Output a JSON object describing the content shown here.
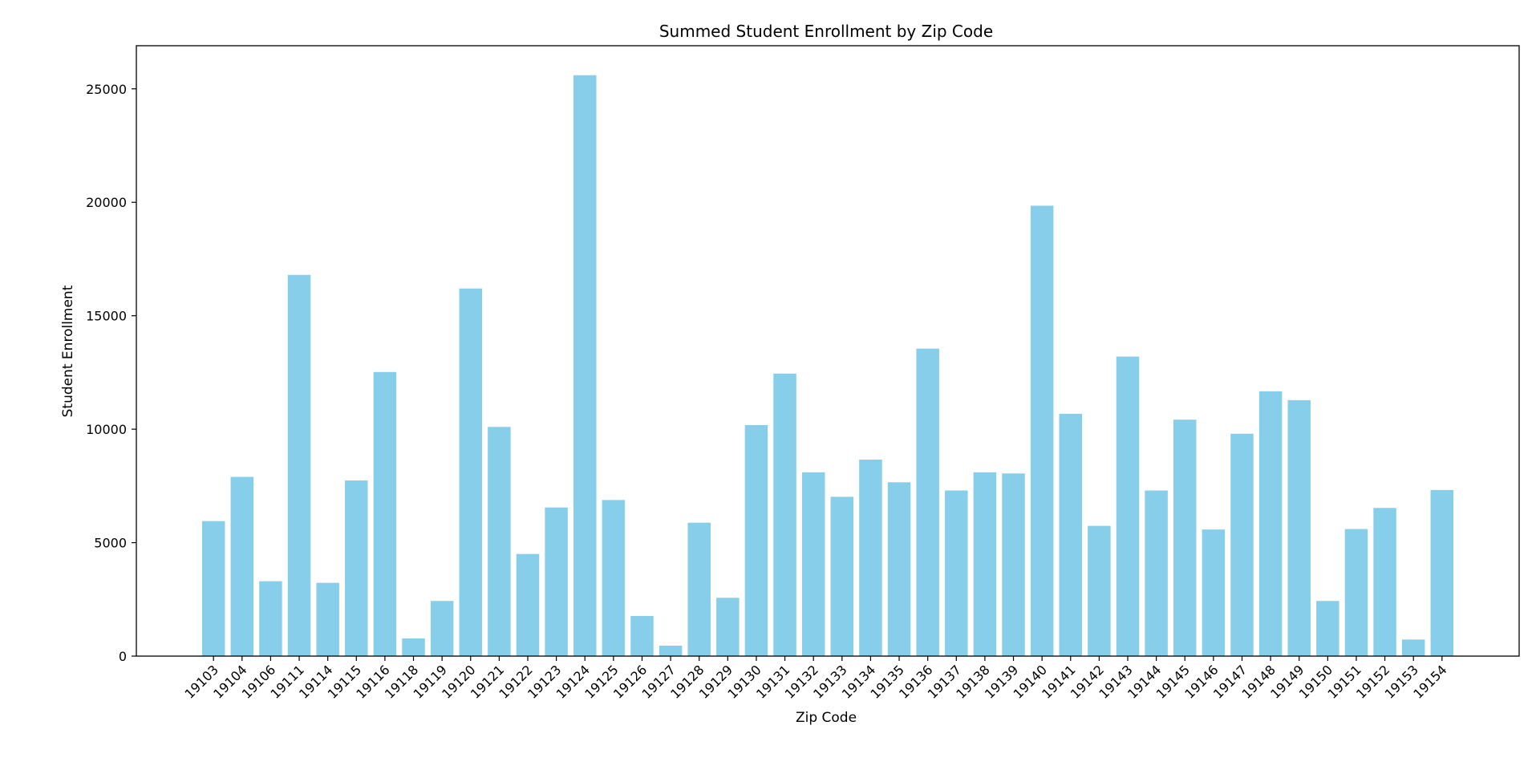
{
  "chart_data": {
    "type": "bar",
    "title": "Summed Student Enrollment by Zip Code",
    "xlabel": "Zip Code",
    "ylabel": "Student Enrollment",
    "ylim": [
      0,
      26900
    ],
    "yticks": [
      0,
      5000,
      10000,
      15000,
      20000,
      25000
    ],
    "grid": false,
    "bar_color": "#87CEEB",
    "categories": [
      "19103",
      "19104",
      "19106",
      "19111",
      "19114",
      "19115",
      "19116",
      "19118",
      "19119",
      "19120",
      "19121",
      "19122",
      "19123",
      "19124",
      "19125",
      "19126",
      "19127",
      "19128",
      "19129",
      "19130",
      "19131",
      "19132",
      "19133",
      "19134",
      "19135",
      "19136",
      "19137",
      "19138",
      "19139",
      "19140",
      "19141",
      "19142",
      "19143",
      "19144",
      "19145",
      "19146",
      "19147",
      "19148",
      "19149",
      "19150",
      "19151",
      "19152",
      "19153",
      "19154"
    ],
    "values": [
      5950,
      7900,
      3300,
      16800,
      3230,
      7740,
      12520,
      780,
      2430,
      16200,
      10100,
      4500,
      6550,
      25600,
      6880,
      1770,
      460,
      5880,
      2570,
      10180,
      12450,
      8100,
      7020,
      8660,
      7660,
      13550,
      7300,
      8100,
      8050,
      19850,
      10680,
      5740,
      13200,
      7300,
      10420,
      5580,
      9800,
      11670,
      11280,
      2430,
      5600,
      6530,
      730,
      7320
    ]
  }
}
